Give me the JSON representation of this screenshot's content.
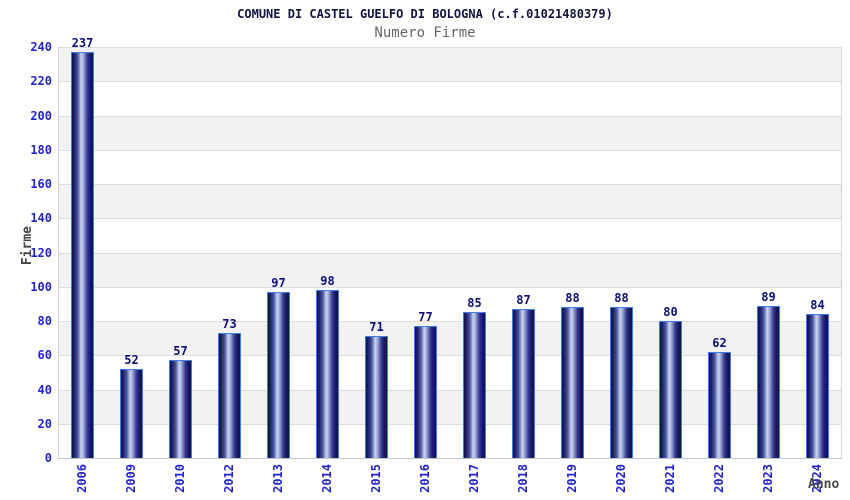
{
  "chart_data": {
    "type": "bar",
    "title": "COMUNE DI CASTEL GUELFO DI BOLOGNA (c.f.01021480379)",
    "subtitle": "Numero Firme",
    "xlabel": "Anno",
    "ylabel": "Firme",
    "categories": [
      "2006",
      "2009",
      "2010",
      "2012",
      "2013",
      "2014",
      "2015",
      "2016",
      "2017",
      "2018",
      "2019",
      "2020",
      "2021",
      "2022",
      "2023",
      "2024"
    ],
    "values": [
      237,
      52,
      57,
      73,
      97,
      98,
      71,
      77,
      85,
      87,
      88,
      88,
      80,
      62,
      89,
      84
    ],
    "ylim": [
      0,
      240
    ],
    "ytick_step": 20,
    "grid": true,
    "legend": "none",
    "band_pattern": "alternating white / light gray every 20 units",
    "colors": {
      "title": "#13133f",
      "subtitle": "#666666",
      "axis_label": "#474747",
      "tick_label": "#2424cc",
      "value_label": "#0f0f78",
      "bar_border": "#3f7fe3",
      "bar_dark": "#10104a",
      "bar_mid": "#4c5aa5",
      "bar_highlight": "#ccd4ee",
      "band_gray": "#f2f2f2",
      "gridline": "#dcdcdc"
    }
  }
}
